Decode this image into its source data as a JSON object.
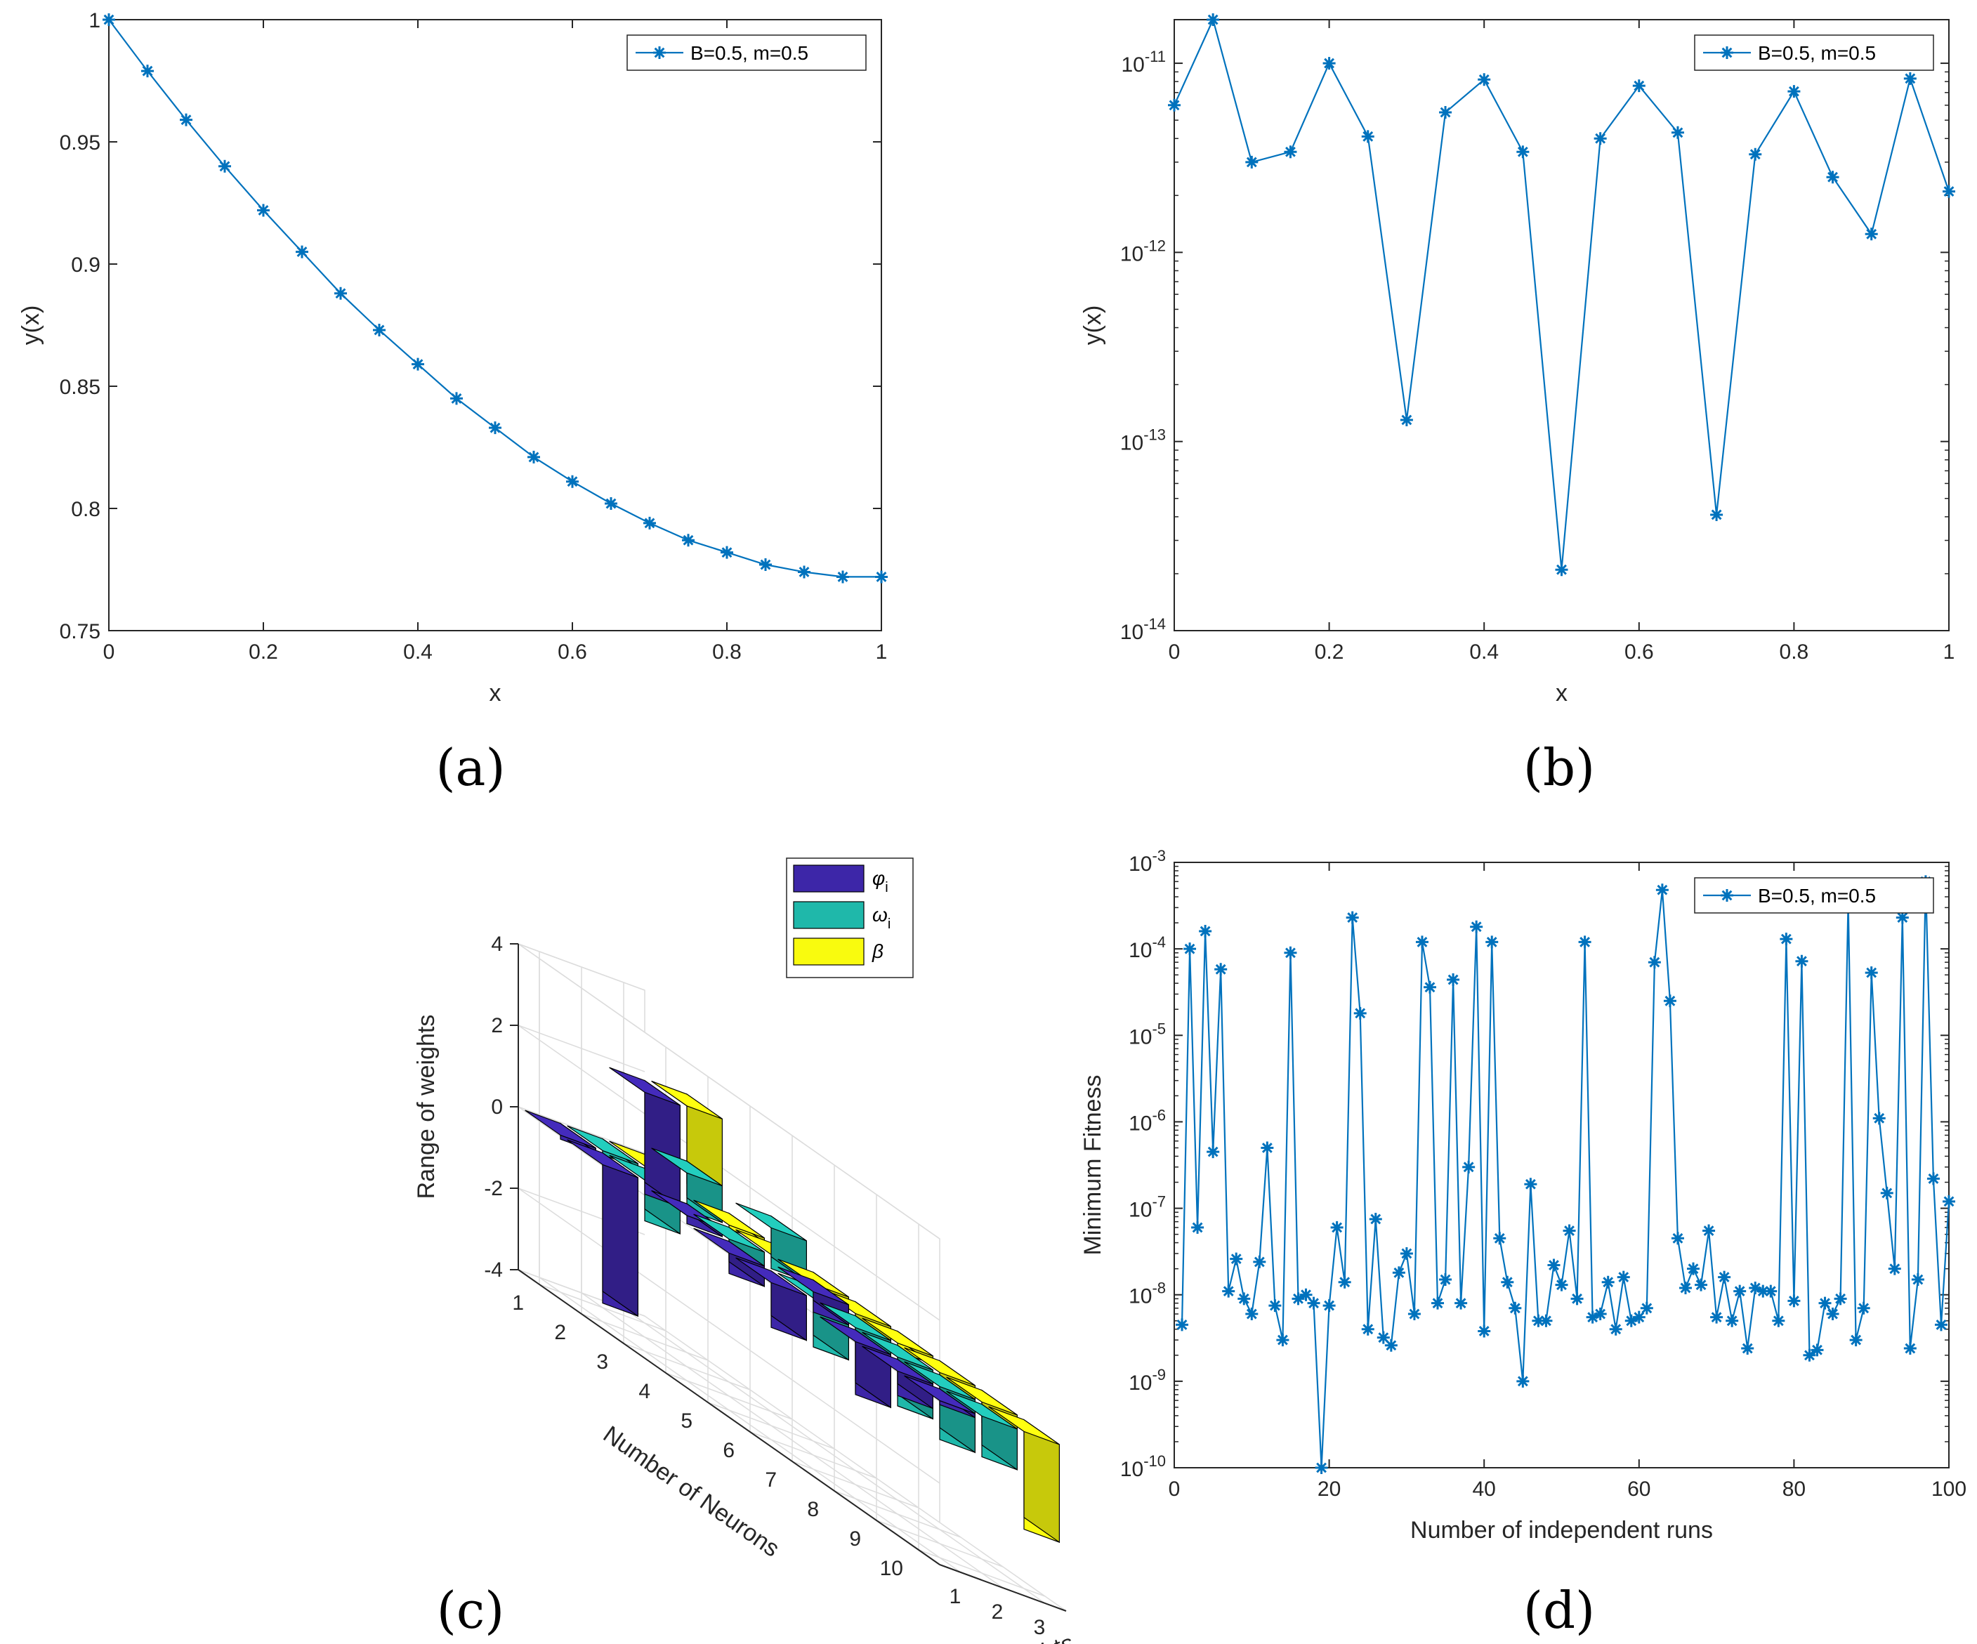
{
  "panels": [
    {
      "label": "(a)",
      "chart_data": {
        "type": "line",
        "xlabel": "x",
        "ylabel": "y(x)",
        "xlim": [
          0,
          1
        ],
        "ylim": [
          0.75,
          1
        ],
        "yscale": "linear",
        "xticks": [
          "0",
          "0.2",
          "0.4",
          "0.6",
          "0.8",
          "1"
        ],
        "yticks": [
          "0.75",
          "0.8",
          "0.85",
          "0.9",
          "0.95",
          "1"
        ],
        "series": [
          {
            "name": "B=0.5, m=0.5",
            "color": "#0072BD",
            "marker": "asterisk",
            "x": [
              0,
              0.05,
              0.1,
              0.15,
              0.2,
              0.25,
              0.3,
              0.35,
              0.4,
              0.45,
              0.5,
              0.55,
              0.6,
              0.65,
              0.7,
              0.75,
              0.8,
              0.85,
              0.9,
              0.95,
              1
            ],
            "y": [
              1.0,
              0.979,
              0.959,
              0.94,
              0.922,
              0.905,
              0.888,
              0.873,
              0.859,
              0.845,
              0.833,
              0.821,
              0.811,
              0.802,
              0.794,
              0.787,
              0.782,
              0.777,
              0.774,
              0.772,
              0.772
            ]
          }
        ],
        "legend": "top-right"
      }
    },
    {
      "label": "(b)",
      "chart_data": {
        "type": "line",
        "xlabel": "x",
        "ylabel": "y(x)",
        "xlim": [
          0,
          1
        ],
        "ylim": [
          1e-14,
          1.7e-11
        ],
        "yscale": "log",
        "xticks": [
          "0",
          "0.2",
          "0.4",
          "0.6",
          "0.8",
          "1"
        ],
        "yticks_exp": [
          "-14",
          "-13",
          "-12",
          "-11"
        ],
        "series": [
          {
            "name": "B=0.5, m=0.5",
            "color": "#0072BD",
            "marker": "asterisk",
            "x": [
              0,
              0.05,
              0.1,
              0.15,
              0.2,
              0.25,
              0.3,
              0.35,
              0.4,
              0.45,
              0.5,
              0.55,
              0.6,
              0.65,
              0.7,
              0.75,
              0.8,
              0.85,
              0.9,
              0.95,
              1
            ],
            "y": [
              6e-12,
              1.7e-11,
              3e-12,
              3.4e-12,
              1e-11,
              4.1e-12,
              1.3e-13,
              5.5e-12,
              8.2e-12,
              3.4e-12,
              2.1e-14,
              4e-12,
              7.6e-12,
              4.3e-12,
              4.1e-14,
              3.3e-12,
              7.1e-12,
              2.5e-12,
              1.25e-12,
              8.3e-12,
              2.1e-12
            ]
          }
        ],
        "legend": "top-right"
      }
    },
    {
      "label": "(c)",
      "chart_data": {
        "type": "bar3d",
        "xlabel": "Weights",
        "ylabel": "Number of Neurons",
        "zlabel": "Range of weights",
        "zlim": [
          -4,
          4
        ],
        "zticks": [
          "-4",
          "-2",
          "0",
          "2",
          "4"
        ],
        "neuron_ticks": [
          "1",
          "2",
          "3",
          "4",
          "5",
          "6",
          "7",
          "8",
          "9",
          "10"
        ],
        "weight_ticks": [
          "1",
          "2",
          "3"
        ],
        "series": [
          {
            "name": "φ",
            "subscript": "i",
            "color": "#3D26A8",
            "values": [
              -0.1,
              -3.4,
              2.5,
              0.2,
              -0.5,
              -1.1,
              0.5,
              -1.3,
              -0.6,
              -0.1
            ]
          },
          {
            "name": "ω",
            "subscript": "i",
            "color": "#1FB8AA",
            "values": [
              -0.1,
              -1.0,
              0.9,
              -0.8,
              1.0,
              -1.2,
              -1.6,
              -1.2,
              -1.3,
              -1.0
            ]
          },
          {
            "name": "β",
            "subscript": "",
            "color": "#F9FB0E",
            "values": [
              -0.1,
              2.2,
              -0.1,
              -0.2,
              -0.3,
              -0.4,
              -0.2,
              -0.6,
              -0.8,
              -2.4
            ]
          }
        ],
        "legend": "top-right"
      }
    },
    {
      "label": "(d)",
      "chart_data": {
        "type": "line",
        "xlabel": "Number of independent runs",
        "ylabel": "Minimum Fitness",
        "xlim": [
          0,
          100
        ],
        "ylim": [
          1e-10,
          0.001
        ],
        "yscale": "log",
        "xticks": [
          "0",
          "20",
          "40",
          "60",
          "80",
          "100"
        ],
        "yticks_exp": [
          "-10",
          "-9",
          "-8",
          "-7",
          "-6",
          "-5",
          "-4",
          "-3"
        ],
        "series": [
          {
            "name": "B=0.5, m=0.5",
            "color": "#0072BD",
            "marker": "asterisk",
            "x": [
              1,
              2,
              3,
              4,
              5,
              6,
              7,
              8,
              9,
              10,
              11,
              12,
              13,
              14,
              15,
              16,
              17,
              18,
              19,
              20,
              21,
              22,
              23,
              24,
              25,
              26,
              27,
              28,
              29,
              30,
              31,
              32,
              33,
              34,
              35,
              36,
              37,
              38,
              39,
              40,
              41,
              42,
              43,
              44,
              45,
              46,
              47,
              48,
              49,
              50,
              51,
              52,
              53,
              54,
              55,
              56,
              57,
              58,
              59,
              60,
              61,
              62,
              63,
              64,
              65,
              66,
              67,
              68,
              69,
              70,
              71,
              72,
              73,
              74,
              75,
              76,
              77,
              78,
              79,
              80,
              81,
              82,
              83,
              84,
              85,
              86,
              87,
              88,
              89,
              90,
              91,
              92,
              93,
              94,
              95,
              96,
              97,
              98,
              99,
              100
            ],
            "y": [
              4.5e-09,
              0.0001,
              6e-08,
              0.00016,
              4.5e-07,
              5.8e-05,
              1.1e-08,
              2.6e-08,
              9e-09,
              6e-09,
              2.4e-08,
              5e-07,
              7.5e-09,
              3e-09,
              9e-05,
              9e-09,
              1e-08,
              8e-09,
              1e-10,
              7.5e-09,
              6e-08,
              1.4e-08,
              0.00023,
              1.8e-05,
              4e-09,
              7.5e-08,
              3.2e-09,
              2.6e-09,
              1.8e-08,
              3e-08,
              6e-09,
              0.00012,
              3.6e-05,
              8e-09,
              1.5e-08,
              4.4e-05,
              8e-09,
              3e-07,
              0.00018,
              3.8e-09,
              0.00012,
              4.5e-08,
              1.4e-08,
              7e-09,
              1e-09,
              1.9e-07,
              5e-09,
              5e-09,
              2.2e-08,
              1.3e-08,
              5.5e-08,
              9e-09,
              0.00012,
              5.5e-09,
              6e-09,
              1.4e-08,
              4e-09,
              1.6e-08,
              5e-09,
              5.5e-09,
              7e-09,
              7e-05,
              0.00048,
              2.5e-05,
              4.5e-08,
              1.2e-08,
              2e-08,
              1.3e-08,
              5.5e-08,
              5.5e-09,
              1.6e-08,
              5e-09,
              1.1e-08,
              2.4e-09,
              1.2e-08,
              1.1e-08,
              1.1e-08,
              5e-09,
              0.00013,
              8.5e-09,
              7.2e-05,
              2e-09,
              2.3e-09,
              8e-09,
              6e-09,
              9e-09,
              0.00035,
              3e-09,
              7e-09,
              5.3e-05,
              1.1e-06,
              1.5e-07,
              2e-08,
              0.00023,
              2.4e-09,
              1.5e-08,
              0.0006,
              2.2e-07,
              4.5e-09,
              1.2e-07
            ]
          }
        ],
        "legend": "top-right"
      }
    }
  ]
}
